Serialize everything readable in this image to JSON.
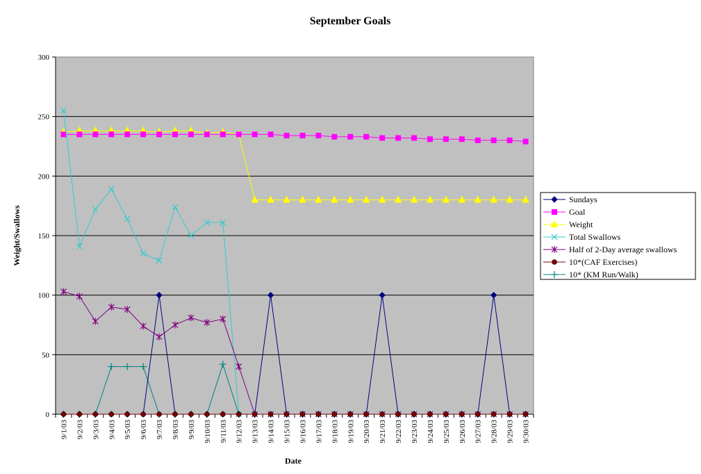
{
  "chart_data": {
    "type": "line",
    "title": "September Goals",
    "xlabel": "Date",
    "ylabel": "Weight/Swallows",
    "ylim": [
      0,
      300
    ],
    "yticks": [
      0,
      50,
      100,
      150,
      200,
      250,
      300
    ],
    "grid": true,
    "legend_position": "right",
    "plot_background": "#c0c0c0",
    "categories": [
      "9/1/03",
      "9/2/03",
      "9/3/03",
      "9/4/03",
      "9/5/03",
      "9/6/03",
      "9/7/03",
      "9/8/03",
      "9/9/03",
      "9/10/03",
      "9/11/03",
      "9/12/03",
      "9/13/03",
      "9/14/03",
      "9/15/03",
      "9/16/03",
      "9/17/03",
      "9/18/03",
      "9/19/03",
      "9/20/03",
      "9/21/03",
      "9/22/03",
      "9/23/03",
      "9/24/03",
      "9/25/03",
      "9/26/03",
      "9/27/03",
      "9/28/03",
      "9/29/03",
      "9/30/03"
    ],
    "series": [
      {
        "name": "Sundays",
        "color": "#000080",
        "marker": "diamond",
        "values": [
          0,
          0,
          0,
          0,
          0,
          0,
          100,
          0,
          0,
          0,
          0,
          0,
          0,
          100,
          0,
          0,
          0,
          0,
          0,
          0,
          100,
          0,
          0,
          0,
          0,
          0,
          0,
          100,
          0,
          0
        ]
      },
      {
        "name": "Goal",
        "color": "#ff00ff",
        "marker": "square",
        "values": [
          235,
          235,
          235,
          235,
          235,
          235,
          235,
          235,
          235,
          235,
          235,
          235,
          235,
          235,
          234,
          234,
          234,
          233,
          233,
          233,
          232,
          232,
          232,
          231,
          231,
          231,
          230,
          230,
          230,
          229
        ]
      },
      {
        "name": "Weight",
        "color": "#ffff00",
        "marker": "triangle",
        "values": [
          237,
          238,
          238,
          238,
          238,
          238,
          237,
          238,
          238,
          236,
          237,
          235,
          180,
          180,
          180,
          180,
          180,
          180,
          180,
          180,
          180,
          180,
          180,
          180,
          180,
          180,
          180,
          180,
          180,
          180
        ]
      },
      {
        "name": "Total Swallows",
        "color": "#33cccc",
        "marker": "x",
        "values": [
          255,
          141,
          172,
          189,
          164,
          135,
          129,
          174,
          150,
          161,
          161,
          0,
          0,
          0,
          0,
          0,
          0,
          0,
          0,
          0,
          0,
          0,
          0,
          0,
          0,
          0,
          0,
          0,
          0,
          0
        ]
      },
      {
        "name": "Half of 2-Day average swallows",
        "color": "#800080",
        "marker": "star",
        "values": [
          103,
          99,
          78,
          90,
          88,
          74,
          65,
          75,
          81,
          77,
          80,
          40,
          0,
          0,
          0,
          0,
          0,
          0,
          0,
          0,
          0,
          0,
          0,
          0,
          0,
          0,
          0,
          0,
          0,
          0
        ]
      },
      {
        "name": "10*(CAF Exercises)",
        "color": "#800000",
        "marker": "circle",
        "values": [
          0,
          0,
          0,
          0,
          0,
          0,
          0,
          0,
          0,
          0,
          0,
          0,
          0,
          0,
          0,
          0,
          0,
          0,
          0,
          0,
          0,
          0,
          0,
          0,
          0,
          0,
          0,
          0,
          0,
          0
        ]
      },
      {
        "name": "10* (KM Run/Walk)",
        "color": "#008080",
        "marker": "plus",
        "values": [
          0,
          0,
          0,
          40,
          40,
          40,
          0,
          0,
          0,
          0,
          42,
          0,
          0,
          0,
          0,
          0,
          0,
          0,
          0,
          0,
          0,
          0,
          0,
          0,
          0,
          0,
          0,
          0,
          0,
          0
        ]
      }
    ]
  }
}
